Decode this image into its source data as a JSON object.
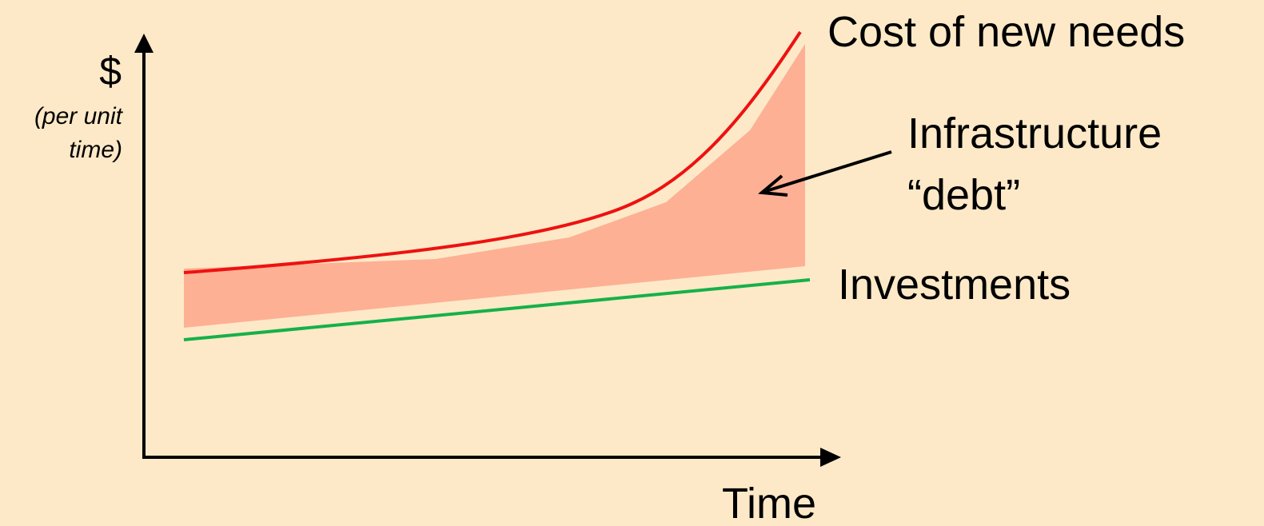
{
  "axes": {
    "y_label": "$",
    "y_note": [
      "(per unit",
      "time)"
    ],
    "x_label": "Time"
  },
  "labels": {
    "cost": "Cost of new needs",
    "investments": "Investments",
    "debt": [
      "Infrastructure",
      "“debt”"
    ]
  }
}
